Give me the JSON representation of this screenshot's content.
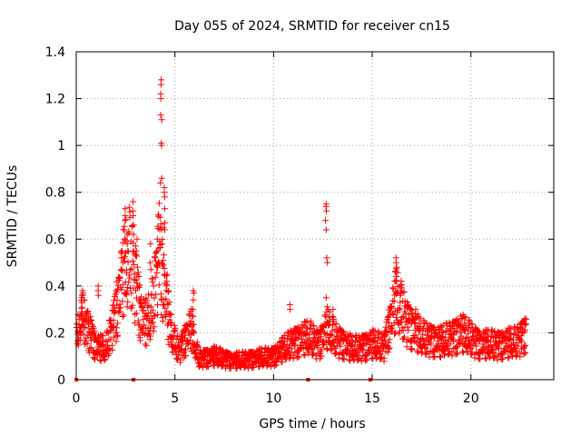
{
  "chart_data": {
    "type": "scatter",
    "title": "Day 055 of 2024, SRMTID for receiver cn15",
    "xlabel": "GPS time / hours",
    "ylabel": "SRMTID / TECUs",
    "xlim": [
      0,
      24.2
    ],
    "ylim": [
      0,
      1.4
    ],
    "xticks": [
      0,
      5,
      10,
      15,
      20
    ],
    "xtick_labels": [
      "0",
      "5",
      "10",
      "15",
      "20"
    ],
    "yticks": [
      0,
      0.2,
      0.4,
      0.6,
      0.8,
      1.0,
      1.2,
      1.4
    ],
    "ytick_labels": [
      "0",
      "0.2",
      "0.4",
      "0.6",
      "0.8",
      "1",
      "1.2",
      "1.4"
    ],
    "grid": true,
    "marker": "plus",
    "color": "#ff0000",
    "series_profile": [
      {
        "x": 0.0,
        "y": 0.18
      },
      {
        "x": 0.3,
        "y": 0.26
      },
      {
        "x": 0.6,
        "y": 0.22
      },
      {
        "x": 1.0,
        "y": 0.14
      },
      {
        "x": 1.5,
        "y": 0.13
      },
      {
        "x": 2.0,
        "y": 0.28
      },
      {
        "x": 2.4,
        "y": 0.46
      },
      {
        "x": 2.7,
        "y": 0.52
      },
      {
        "x": 3.0,
        "y": 0.42
      },
      {
        "x": 3.3,
        "y": 0.26
      },
      {
        "x": 3.6,
        "y": 0.24
      },
      {
        "x": 3.9,
        "y": 0.32
      },
      {
        "x": 4.2,
        "y": 0.56
      },
      {
        "x": 4.5,
        "y": 0.36
      },
      {
        "x": 4.8,
        "y": 0.2
      },
      {
        "x": 5.2,
        "y": 0.12
      },
      {
        "x": 5.8,
        "y": 0.22
      },
      {
        "x": 6.2,
        "y": 0.09
      },
      {
        "x": 7.0,
        "y": 0.1
      },
      {
        "x": 8.0,
        "y": 0.08
      },
      {
        "x": 9.0,
        "y": 0.09
      },
      {
        "x": 10.0,
        "y": 0.1
      },
      {
        "x": 11.0,
        "y": 0.16
      },
      {
        "x": 11.8,
        "y": 0.18
      },
      {
        "x": 12.3,
        "y": 0.15
      },
      {
        "x": 12.7,
        "y": 0.22
      },
      {
        "x": 13.2,
        "y": 0.17
      },
      {
        "x": 14.0,
        "y": 0.13
      },
      {
        "x": 15.0,
        "y": 0.15
      },
      {
        "x": 15.6,
        "y": 0.14
      },
      {
        "x": 16.2,
        "y": 0.34
      },
      {
        "x": 16.8,
        "y": 0.24
      },
      {
        "x": 17.5,
        "y": 0.18
      },
      {
        "x": 18.5,
        "y": 0.16
      },
      {
        "x": 19.5,
        "y": 0.2
      },
      {
        "x": 20.5,
        "y": 0.15
      },
      {
        "x": 21.5,
        "y": 0.15
      },
      {
        "x": 22.3,
        "y": 0.16
      },
      {
        "x": 22.8,
        "y": 0.2
      }
    ],
    "spikes": [
      {
        "x": 0.3,
        "ys": [
          0.36,
          0.38,
          0.37,
          0.33,
          0.31,
          0.29
        ]
      },
      {
        "x": 1.1,
        "ys": [
          0.4,
          0.38,
          0.36
        ]
      },
      {
        "x": 2.3,
        "ys": [
          0.52,
          0.55,
          0.47
        ]
      },
      {
        "x": 2.45,
        "ys": [
          0.73,
          0.7,
          0.68,
          0.64,
          0.6
        ]
      },
      {
        "x": 2.6,
        "ys": [
          0.62,
          0.58,
          0.55
        ]
      },
      {
        "x": 2.9,
        "ys": [
          0.76,
          0.72,
          0.7,
          0.66,
          0.62
        ]
      },
      {
        "x": 3.05,
        "ys": [
          0.6,
          0.55
        ]
      },
      {
        "x": 3.75,
        "ys": [
          0.58,
          0.5,
          0.47
        ]
      },
      {
        "x": 4.1,
        "ys": [
          0.6,
          0.55,
          0.48
        ]
      },
      {
        "x": 4.3,
        "ys": [
          1.28,
          1.26,
          1.22,
          1.2,
          1.13,
          1.11,
          1.01,
          1.0,
          0.86,
          0.84
        ]
      },
      {
        "x": 4.45,
        "ys": [
          0.82,
          0.8,
          0.78,
          0.73,
          0.67,
          0.65,
          0.64
        ]
      },
      {
        "x": 4.6,
        "ys": [
          0.45,
          0.42,
          0.4
        ]
      },
      {
        "x": 5.95,
        "ys": [
          0.38,
          0.37,
          0.34,
          0.3,
          0.27
        ]
      },
      {
        "x": 10.8,
        "ys": [
          0.32,
          0.3
        ]
      },
      {
        "x": 12.65,
        "ys": [
          0.75,
          0.74,
          0.72,
          0.68,
          0.64
        ]
      },
      {
        "x": 12.7,
        "ys": [
          0.52,
          0.5,
          0.35
        ]
      },
      {
        "x": 13.0,
        "ys": [
          0.3,
          0.27
        ]
      },
      {
        "x": 16.2,
        "ys": [
          0.52,
          0.5,
          0.48,
          0.46,
          0.44,
          0.42
        ]
      },
      {
        "x": 16.4,
        "ys": [
          0.4,
          0.38,
          0.36
        ]
      },
      {
        "x": 17.2,
        "ys": [
          0.3,
          0.28
        ]
      }
    ],
    "gap_markers_x": [
      0.0,
      2.9,
      11.75,
      14.9
    ]
  }
}
